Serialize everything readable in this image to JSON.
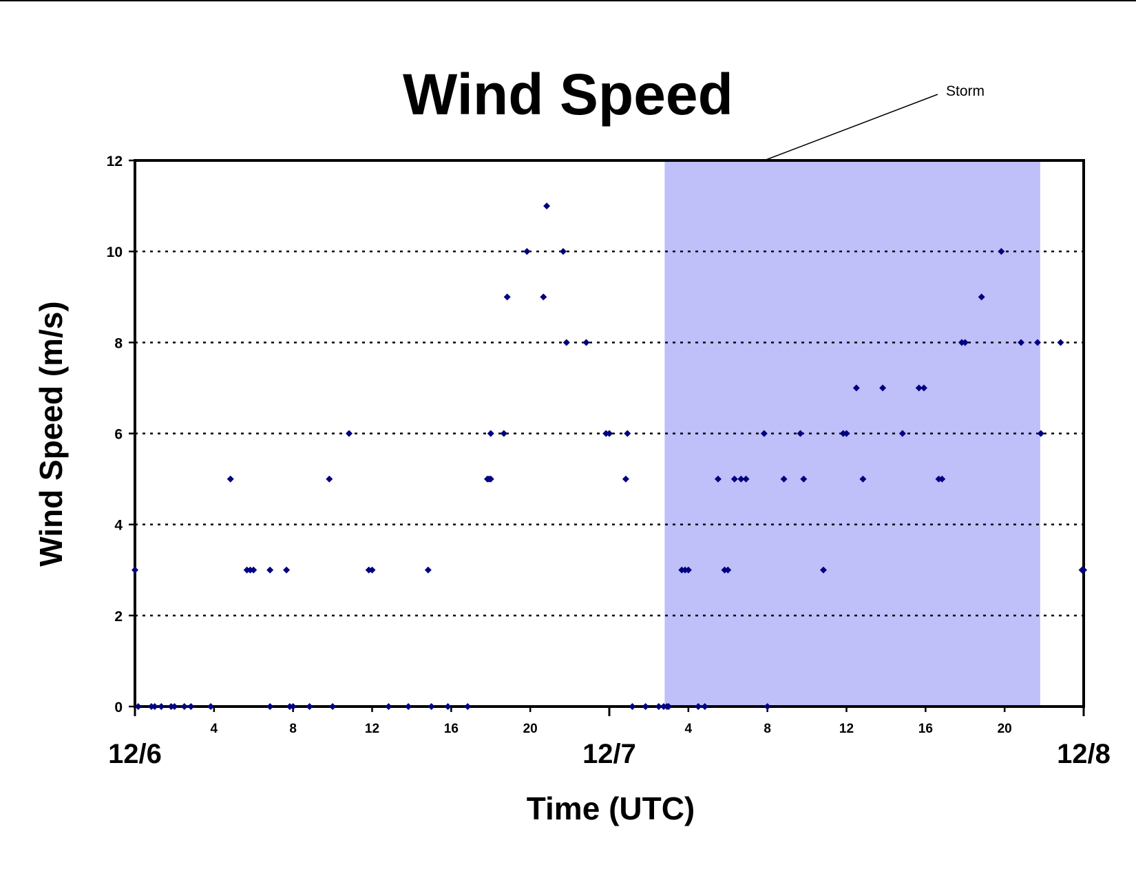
{
  "chart_data": {
    "type": "scatter",
    "title": "Wind Speed",
    "xlabel": "Time (UTC)",
    "ylabel": "Wind Speed (m/s)",
    "ylim": [
      0,
      12
    ],
    "xlim": [
      "12/6 00:00",
      "12/8 00:00"
    ],
    "yticks": [
      "0",
      "2",
      "4",
      "6",
      "8",
      "10",
      "12"
    ],
    "hour_ticks": [
      {
        "hour": 4,
        "label": "4"
      },
      {
        "hour": 8,
        "label": "8"
      },
      {
        "hour": 12,
        "label": "12"
      },
      {
        "hour": 16,
        "label": "16"
      },
      {
        "hour": 20,
        "label": "20"
      },
      {
        "hour": 28,
        "label": "4"
      },
      {
        "hour": 32,
        "label": "8"
      },
      {
        "hour": 36,
        "label": "12"
      },
      {
        "hour": 40,
        "label": "16"
      },
      {
        "hour": 44,
        "label": "20"
      }
    ],
    "day_labels": [
      {
        "hour": 0,
        "label": "12/6"
      },
      {
        "hour": 24,
        "label": "12/7"
      },
      {
        "hour": 48,
        "label": "12/8"
      }
    ],
    "grid": "horizontal dotted",
    "marker_color": "#000080",
    "storm_color": "#bfbff9",
    "annotation": {
      "text": "Storm",
      "shaded_from": "12/7 02:48",
      "shaded_to": "12/7 21:48"
    },
    "series": [
      {
        "points": [
          [
            "12/6 00:00",
            3
          ],
          [
            "12/6 00:10",
            0
          ],
          [
            "12/6 00:50",
            0
          ],
          [
            "12/6 01:00",
            0
          ],
          [
            "12/6 01:20",
            0
          ],
          [
            "12/6 01:50",
            0
          ],
          [
            "12/6 02:00",
            0
          ],
          [
            "12/6 02:30",
            0
          ],
          [
            "12/6 02:50",
            0
          ],
          [
            "12/6 03:50",
            0
          ],
          [
            "12/6 04:50",
            5
          ],
          [
            "12/6 05:40",
            3
          ],
          [
            "12/6 05:50",
            3
          ],
          [
            "12/6 06:00",
            3
          ],
          [
            "12/6 06:50",
            3
          ],
          [
            "12/6 06:50",
            0
          ],
          [
            "12/6 07:40",
            3
          ],
          [
            "12/6 07:50",
            0
          ],
          [
            "12/6 08:00",
            0
          ],
          [
            "12/6 08:50",
            0
          ],
          [
            "12/6 09:50",
            5
          ],
          [
            "12/6 10:00",
            0
          ],
          [
            "12/6 10:50",
            6
          ],
          [
            "12/6 11:50",
            3
          ],
          [
            "12/6 12:00",
            3
          ],
          [
            "12/6 12:50",
            0
          ],
          [
            "12/6 13:50",
            0
          ],
          [
            "12/6 14:50",
            3
          ],
          [
            "12/6 15:00",
            0
          ],
          [
            "12/6 15:50",
            0
          ],
          [
            "12/6 16:50",
            0
          ],
          [
            "12/6 17:50",
            5
          ],
          [
            "12/6 17:55",
            5
          ],
          [
            "12/6 18:00",
            6
          ],
          [
            "12/6 18:00",
            5
          ],
          [
            "12/6 18:40",
            6
          ],
          [
            "12/6 18:50",
            9
          ],
          [
            "12/6 19:50",
            10
          ],
          [
            "12/6 20:40",
            9
          ],
          [
            "12/6 20:50",
            11
          ],
          [
            "12/6 21:40",
            10
          ],
          [
            "12/6 21:50",
            8
          ],
          [
            "12/6 22:50",
            8
          ],
          [
            "12/6 23:50",
            6
          ],
          [
            "12/7 00:00",
            6
          ],
          [
            "12/7 00:50",
            5
          ],
          [
            "12/7 00:55",
            6
          ],
          [
            "12/7 01:10",
            0
          ],
          [
            "12/7 01:50",
            0
          ],
          [
            "12/7 02:30",
            0
          ],
          [
            "12/7 02:45",
            0
          ],
          [
            "12/7 02:55",
            0
          ],
          [
            "12/7 03:00",
            0
          ],
          [
            "12/7 03:40",
            3
          ],
          [
            "12/7 03:50",
            3
          ],
          [
            "12/7 04:00",
            3
          ],
          [
            "12/7 04:30",
            0
          ],
          [
            "12/7 04:50",
            0
          ],
          [
            "12/7 05:30",
            5
          ],
          [
            "12/7 05:50",
            3
          ],
          [
            "12/7 06:00",
            3
          ],
          [
            "12/7 06:20",
            5
          ],
          [
            "12/7 06:40",
            5
          ],
          [
            "12/7 06:55",
            5
          ],
          [
            "12/7 07:50",
            6
          ],
          [
            "12/7 08:00",
            0
          ],
          [
            "12/7 08:50",
            5
          ],
          [
            "12/7 09:40",
            6
          ],
          [
            "12/7 09:50",
            5
          ],
          [
            "12/7 10:50",
            3
          ],
          [
            "12/7 11:50",
            6
          ],
          [
            "12/7 12:00",
            6
          ],
          [
            "12/7 12:30",
            7
          ],
          [
            "12/7 12:50",
            5
          ],
          [
            "12/7 13:50",
            7
          ],
          [
            "12/7 14:50",
            6
          ],
          [
            "12/7 15:40",
            7
          ],
          [
            "12/7 15:55",
            7
          ],
          [
            "12/7 16:40",
            5
          ],
          [
            "12/7 16:50",
            5
          ],
          [
            "12/7 17:50",
            8
          ],
          [
            "12/7 18:00",
            8
          ],
          [
            "12/7 18:50",
            9
          ],
          [
            "12/7 19:50",
            10
          ],
          [
            "12/7 20:50",
            8
          ],
          [
            "12/7 21:40",
            8
          ],
          [
            "12/7 21:50",
            6
          ],
          [
            "12/7 22:50",
            8
          ],
          [
            "12/7 23:55",
            3
          ],
          [
            "12/8 00:00",
            3
          ]
        ]
      }
    ]
  }
}
